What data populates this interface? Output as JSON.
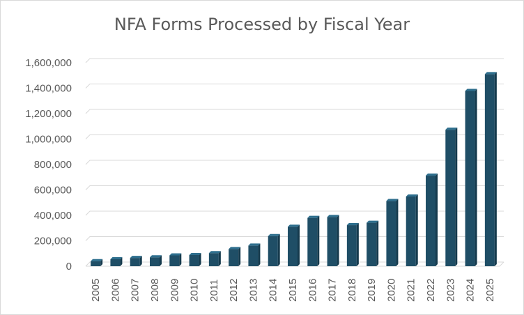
{
  "chart_data": {
    "type": "bar",
    "title": "NFA Forms Processed by Fiscal Year",
    "xlabel": "",
    "ylabel": "",
    "categories": [
      "2005",
      "2006",
      "2007",
      "2008",
      "2009",
      "2010",
      "2011",
      "2012",
      "2013",
      "2014",
      "2015",
      "2016",
      "2017",
      "2018",
      "2019",
      "2020",
      "2021",
      "2022",
      "2023",
      "2024",
      "2025"
    ],
    "values": [
      40000,
      55000,
      65000,
      70000,
      85000,
      88000,
      103000,
      135000,
      162000,
      237000,
      310000,
      380000,
      387000,
      323000,
      342000,
      513000,
      548000,
      712000,
      1073000,
      1378000,
      1510000
    ],
    "ylim": [
      0,
      1600000
    ],
    "yticks": [
      "0",
      "200,000",
      "400,000",
      "600,000",
      "800,000",
      "1,000,000",
      "1,200,000",
      "1,400,000",
      "1,600,000"
    ],
    "grid": true,
    "legend": "none",
    "bar_color": "#1f4e66",
    "bar_top_color": "#2e6f8e",
    "bar_side_color": "#153a4d"
  }
}
